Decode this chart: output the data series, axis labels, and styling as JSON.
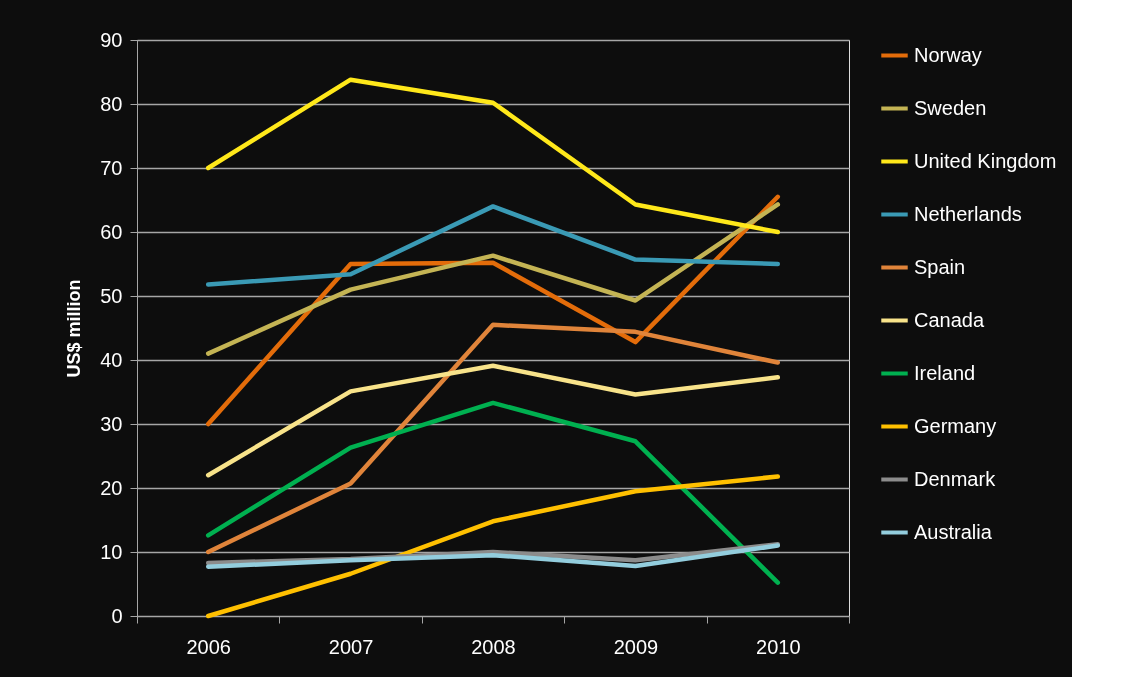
{
  "chart_data": {
    "type": "line",
    "ylabel": "US$ million",
    "categories": [
      "2006",
      "2007",
      "2008",
      "2009",
      "2010"
    ],
    "ylim": [
      0,
      90
    ],
    "yticks": [
      0,
      10,
      20,
      30,
      40,
      50,
      60,
      70,
      80,
      90
    ],
    "grid": "y",
    "legend": "right",
    "series": [
      {
        "name": "Norway",
        "color": "#e36c0a",
        "values": [
          30,
          55,
          55.2,
          42.8,
          65.5
        ]
      },
      {
        "name": "Sweden",
        "color": "#c4b454",
        "values": [
          41,
          51,
          56.3,
          49.3,
          64.3
        ]
      },
      {
        "name": "United Kingdom",
        "color": "#ffe81a",
        "values": [
          70,
          83.8,
          80.2,
          64.3,
          60
        ]
      },
      {
        "name": "Netherlands",
        "color": "#3a9ab5",
        "values": [
          51.8,
          53.4,
          64,
          55.7,
          55
        ]
      },
      {
        "name": "Spain",
        "color": "#e0843a",
        "values": [
          10,
          20.7,
          45.5,
          44.4,
          39.6
        ]
      },
      {
        "name": "Canada",
        "color": "#f8e38a",
        "values": [
          22,
          35.1,
          39.1,
          34.6,
          37.3
        ]
      },
      {
        "name": "Ireland",
        "color": "#00b050",
        "values": [
          12.6,
          26.3,
          33.3,
          27.3,
          5.2
        ]
      },
      {
        "name": "Germany",
        "color": "#ffc000",
        "values": [
          0,
          6.6,
          14.8,
          19.5,
          21.8
        ]
      },
      {
        "name": "Denmark",
        "color": "#8c8c8c",
        "values": [
          8.3,
          8.9,
          10,
          8.7,
          11.2
        ]
      },
      {
        "name": "Australia",
        "color": "#93cddd",
        "values": [
          7.7,
          8.7,
          9.5,
          7.8,
          11
        ]
      }
    ]
  }
}
